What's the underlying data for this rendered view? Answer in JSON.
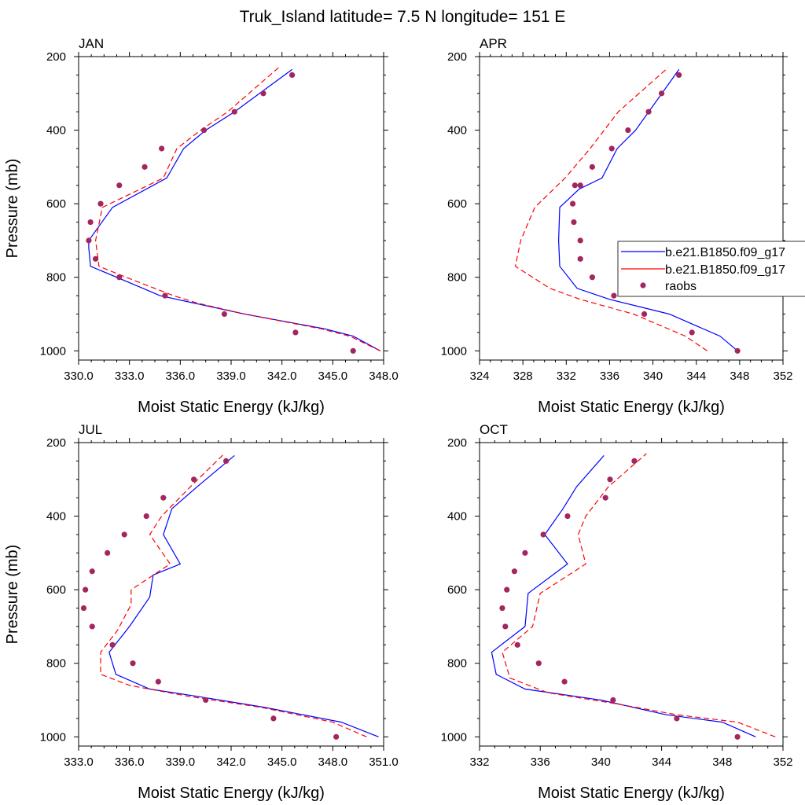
{
  "figure_title": "Truk_Island  latitude= 7.5 N longitude= 151 E",
  "colors": {
    "model1": "#0000ff",
    "model2": "#ff0000",
    "raobs": "#a3265e",
    "axis": "#000000"
  },
  "legend": {
    "placement": "right, in APR panel",
    "entries": [
      {
        "label": "b.e21.B1850.f09_g17",
        "style": "solid-line",
        "color_key": "model1"
      },
      {
        "label": "b.e21.B1850.f09_g17",
        "style": "dashed-line",
        "color_key": "model2"
      },
      {
        "label": "raobs",
        "style": "marker",
        "color_key": "raobs"
      }
    ]
  },
  "chart_data": [
    {
      "type": "line",
      "title": "JAN",
      "xlabel": "Moist Static Energy (kJ/kg)",
      "ylabel": "Pressure (mb)",
      "xlim": [
        330,
        348
      ],
      "ylim": [
        1025,
        200
      ],
      "xticks": [
        330,
        333,
        336,
        339,
        342,
        345,
        348
      ],
      "xtick_labels": [
        "330.0",
        "333.0",
        "336.0",
        "339.0",
        "342.0",
        "345.0",
        "348.0"
      ],
      "yticks": [
        200,
        400,
        600,
        800,
        1000
      ],
      "ytick_labels": [
        "200",
        "400",
        "600",
        "800",
        "1000"
      ],
      "series": [
        {
          "name": "b.e21.B1850.f09_g17",
          "style": "solid",
          "color_key": "model1",
          "x": [
            347.8,
            346.2,
            344.5,
            339.8,
            336.8,
            334.8,
            333.8,
            330.7,
            330.6,
            330.6,
            332.0,
            335.2,
            336.2,
            337.5,
            339.2,
            342.6
          ],
          "y": [
            1000,
            960,
            940,
            900,
            870,
            850,
            830,
            770,
            720,
            700,
            610,
            530,
            450,
            400,
            350,
            235
          ]
        },
        {
          "name": "b.e21.B1850.f09_g17",
          "style": "dashed",
          "color_key": "model2",
          "x": [
            347.8,
            346.0,
            344.3,
            339.8,
            337.0,
            335.6,
            332.8,
            331.2,
            331.0,
            331.4,
            335.0,
            335.8,
            337.2,
            338.8,
            341.8
          ],
          "y": [
            1000,
            960,
            940,
            900,
            870,
            850,
            800,
            770,
            700,
            610,
            530,
            450,
            400,
            350,
            230
          ]
        },
        {
          "name": "raobs",
          "style": "marker",
          "color_key": "raobs",
          "x": [
            346.2,
            342.8,
            338.6,
            335.1,
            332.4,
            331.0,
            330.6,
            330.7,
            331.3,
            332.4,
            333.9,
            334.9,
            337.4,
            339.2,
            340.9,
            342.6
          ],
          "y": [
            1000,
            950,
            900,
            850,
            800,
            750,
            700,
            650,
            600,
            550,
            500,
            450,
            400,
            350,
            300,
            250
          ]
        }
      ]
    },
    {
      "type": "line",
      "title": "APR",
      "xlabel": "Moist Static Energy (kJ/kg)",
      "ylabel": "",
      "xlim": [
        324,
        352
      ],
      "ylim": [
        1025,
        200
      ],
      "xticks": [
        324,
        328,
        332,
        336,
        340,
        344,
        348,
        352
      ],
      "xtick_labels": [
        "324",
        "328",
        "332",
        "336",
        "340",
        "344",
        "348",
        "352"
      ],
      "yticks": [
        200,
        400,
        600,
        800,
        1000
      ],
      "ytick_labels": [
        "200",
        "400",
        "600",
        "800",
        "1000"
      ],
      "series": [
        {
          "name": "b.e21.B1850.f09_g17",
          "style": "solid",
          "color_key": "model1",
          "x": [
            347.8,
            346.2,
            341.5,
            336.0,
            333.0,
            331.4,
            331.3,
            331.4,
            333.2,
            335.3,
            336.7,
            338.4,
            342.4
          ],
          "y": [
            1000,
            960,
            900,
            860,
            830,
            770,
            700,
            610,
            560,
            530,
            450,
            400,
            235
          ]
        },
        {
          "name": "b.e21.B1850.f09_g17",
          "style": "dashed",
          "color_key": "model2",
          "x": [
            345.0,
            343.0,
            338.2,
            333.3,
            330.5,
            327.3,
            327.8,
            329.1,
            331.9,
            334.2,
            336.8,
            341.4
          ],
          "y": [
            1000,
            960,
            900,
            860,
            830,
            770,
            700,
            610,
            530,
            450,
            350,
            230
          ]
        },
        {
          "name": "raobs",
          "style": "marker",
          "color_key": "raobs",
          "x": [
            347.8,
            343.6,
            339.2,
            336.4,
            334.4,
            333.3,
            333.3,
            332.7,
            332.6,
            332.8,
            333.3,
            334.4,
            336.2,
            337.7,
            339.6,
            340.8,
            342.4
          ],
          "y": [
            1000,
            950,
            900,
            850,
            800,
            750,
            700,
            650,
            600,
            550,
            550,
            500,
            450,
            400,
            350,
            300,
            250
          ]
        }
      ]
    },
    {
      "type": "line",
      "title": "JUL",
      "xlabel": "Moist Static Energy (kJ/kg)",
      "ylabel": "Pressure (mb)",
      "xlim": [
        333,
        351
      ],
      "ylim": [
        1025,
        200
      ],
      "xticks": [
        333,
        336,
        339,
        342,
        345,
        348,
        351
      ],
      "xtick_labels": [
        "333.0",
        "336.0",
        "339.0",
        "342.0",
        "345.0",
        "348.0",
        "351.0"
      ],
      "yticks": [
        200,
        400,
        600,
        800,
        1000
      ],
      "ytick_labels": [
        "200",
        "400",
        "600",
        "800",
        "1000"
      ],
      "series": [
        {
          "name": "b.e21.B1850.f09_g17",
          "style": "solid",
          "color_key": "model1",
          "x": [
            350.7,
            348.5,
            344.0,
            340.0,
            337.2,
            335.2,
            334.8,
            336.0,
            337.2,
            337.4,
            339.0,
            338.0,
            338.5,
            340.0,
            342.2
          ],
          "y": [
            1000,
            960,
            920,
            890,
            870,
            830,
            770,
            700,
            620,
            560,
            530,
            450,
            380,
            320,
            235
          ]
        },
        {
          "name": "b.e21.B1850.f09_g17",
          "style": "dashed",
          "color_key": "model2",
          "x": [
            350.0,
            348.0,
            343.8,
            339.5,
            336.0,
            334.3,
            334.3,
            335.3,
            336.1,
            336.1,
            338.4,
            337.2,
            337.9,
            339.6,
            341.6
          ],
          "y": [
            1000,
            960,
            920,
            890,
            860,
            830,
            770,
            710,
            640,
            600,
            530,
            450,
            400,
            320,
            230
          ]
        },
        {
          "name": "raobs",
          "style": "marker",
          "color_key": "raobs",
          "x": [
            348.2,
            344.5,
            340.5,
            337.7,
            336.2,
            335.0,
            333.8,
            333.3,
            333.4,
            333.8,
            334.7,
            335.7,
            337.0,
            338.0,
            339.8,
            341.7
          ],
          "y": [
            1000,
            950,
            900,
            850,
            800,
            750,
            700,
            650,
            600,
            550,
            500,
            450,
            400,
            350,
            300,
            250
          ]
        }
      ]
    },
    {
      "type": "line",
      "title": "OCT",
      "xlabel": "Moist Static Energy (kJ/kg)",
      "ylabel": "",
      "xlim": [
        332,
        352
      ],
      "ylim": [
        1025,
        200
      ],
      "xticks": [
        332,
        336,
        340,
        344,
        348,
        352
      ],
      "xtick_labels": [
        "332",
        "336",
        "340",
        "344",
        "348",
        "352"
      ],
      "yticks": [
        200,
        400,
        600,
        800,
        1000
      ],
      "ytick_labels": [
        "200",
        "400",
        "600",
        "800",
        "1000"
      ],
      "series": [
        {
          "name": "b.e21.B1850.f09_g17",
          "style": "solid",
          "color_key": "model1",
          "x": [
            350.2,
            348.0,
            344.3,
            340.0,
            335.0,
            333.1,
            332.8,
            335.0,
            335.2,
            337.8,
            336.3,
            337.5,
            338.4,
            340.2
          ],
          "y": [
            1000,
            960,
            940,
            900,
            870,
            830,
            770,
            700,
            610,
            530,
            450,
            380,
            320,
            235
          ]
        },
        {
          "name": "b.e21.B1850.f09_g17",
          "style": "dashed",
          "color_key": "model2",
          "x": [
            351.5,
            349.0,
            345.0,
            341.0,
            336.5,
            334.0,
            333.5,
            335.5,
            336.0,
            339.0,
            338.5,
            339.0,
            340.5,
            343.0
          ],
          "y": [
            1000,
            960,
            940,
            910,
            880,
            840,
            770,
            700,
            610,
            530,
            450,
            400,
            320,
            230
          ]
        },
        {
          "name": "raobs",
          "style": "marker",
          "color_key": "raobs",
          "x": [
            349.0,
            345.0,
            340.8,
            337.6,
            335.9,
            334.5,
            333.7,
            333.5,
            333.8,
            334.3,
            335.0,
            336.2,
            337.8,
            340.3,
            340.6,
            342.2
          ],
          "y": [
            1000,
            950,
            900,
            850,
            800,
            750,
            700,
            650,
            600,
            550,
            500,
            450,
            400,
            350,
            300,
            250
          ]
        }
      ]
    }
  ]
}
